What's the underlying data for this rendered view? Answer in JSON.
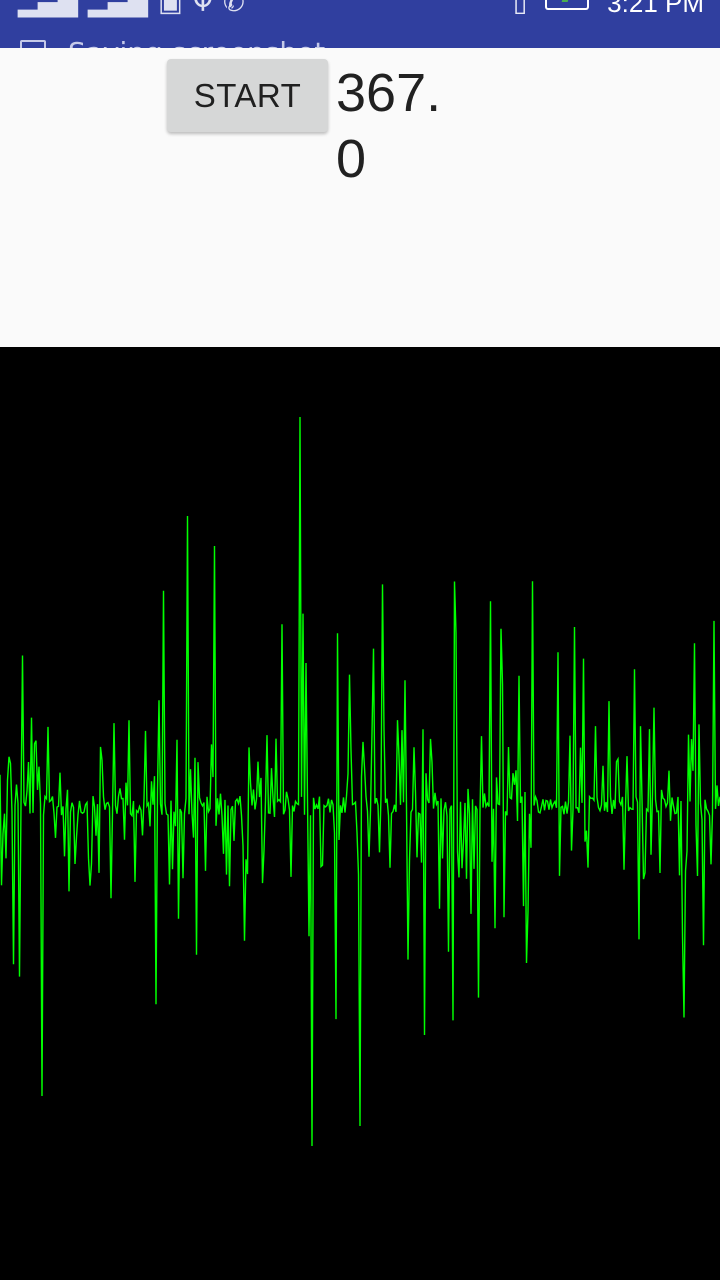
{
  "status_bar": {
    "time": "3:21 PM",
    "notification_text": "Saving screenshot...",
    "left_icons": [
      "signal-sim1-icon",
      "signal-sim2-icon",
      "image-icon",
      "usb-icon",
      "missed-call-icon"
    ],
    "right_icons": [
      "vibrate-icon",
      "battery-charging-icon"
    ],
    "color": "#303F9F"
  },
  "controls": {
    "start_label": "START",
    "value": "367.0"
  },
  "waveform": {
    "line_color": "#00FF00",
    "background": "#000000"
  }
}
